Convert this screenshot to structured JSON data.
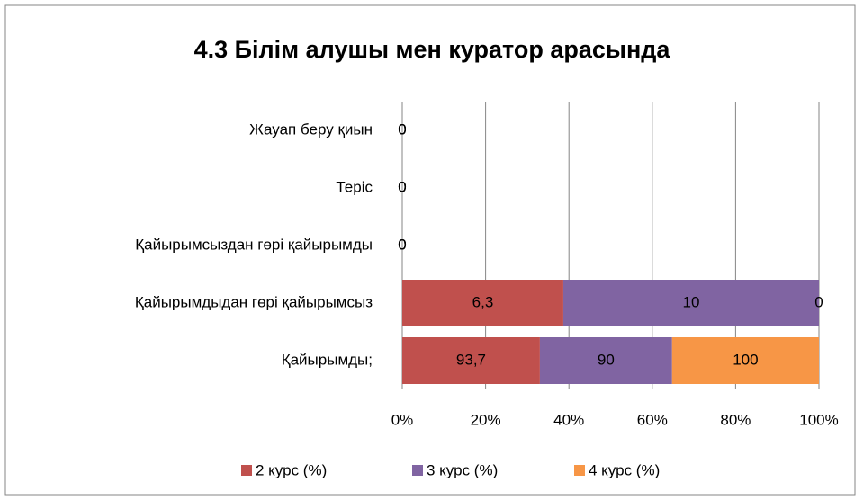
{
  "chart_data": {
    "type": "bar",
    "orientation": "horizontal",
    "stacked": "percent",
    "title": "4.3 Білім алушы мен куратор арасында",
    "categories": [
      "Жауап беру қиын",
      "Теріс",
      "Қайырымсыздан гөрі қайырымды",
      "Қайырымдыдан гөрі қайырымсыз",
      "Қайырымды;"
    ],
    "series": [
      {
        "name": "2 курс (%)",
        "color": "#c0504d",
        "values": [
          0,
          0,
          0,
          6.3,
          93.7
        ],
        "value_labels": [
          "0",
          "0",
          "0",
          "6,3",
          "93,7"
        ]
      },
      {
        "name": "3 курс (%)",
        "color": "#8064a2",
        "values": [
          0,
          0,
          0,
          10,
          90
        ]
      },
      {
        "name": "4 курс (%)",
        "color": "#f79646",
        "values": [
          0,
          0,
          0,
          0,
          100
        ]
      }
    ],
    "xlim": [
      0,
      100
    ],
    "xticks": [
      {
        "value": 0,
        "label": "0%"
      },
      {
        "value": 20,
        "label": "20%"
      },
      {
        "value": 40,
        "label": "40%"
      },
      {
        "value": 60,
        "label": "60%"
      },
      {
        "value": 80,
        "label": "80%"
      },
      {
        "value": 100,
        "label": "100%"
      }
    ],
    "grid": true,
    "legend": "bottom"
  }
}
